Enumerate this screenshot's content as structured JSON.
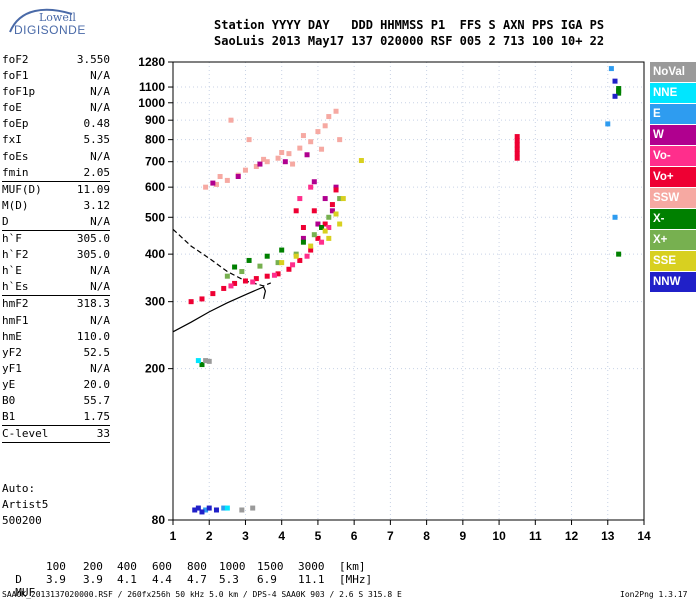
{
  "logo": {
    "line1": "Lowell",
    "line2": "DIGISONDE"
  },
  "header": {
    "line1": "Station YYYY DAY   DDD HHMMSS P1  FFS S AXN PPS IGA PS",
    "line2": "SaoLuis 2013 May17 137 020000 RSF 005 2 713 100 10+ 22"
  },
  "param_groups": [
    [
      {
        "k": "foF2",
        "v": "3.550"
      },
      {
        "k": "foF1",
        "v": "N/A"
      },
      {
        "k": "foF1p",
        "v": "N/A"
      },
      {
        "k": "foE",
        "v": "N/A"
      },
      {
        "k": "foEp",
        "v": "0.48"
      },
      {
        "k": "fxI",
        "v": "5.35"
      },
      {
        "k": "foEs",
        "v": "N/A"
      },
      {
        "k": "fmin",
        "v": "2.05"
      }
    ],
    [
      {
        "k": "MUF(D)",
        "v": "11.09"
      },
      {
        "k": "M(D)",
        "v": "3.12"
      },
      {
        "k": "D",
        "v": "N/A"
      }
    ],
    [
      {
        "k": "h`F",
        "v": "305.0"
      },
      {
        "k": "h`F2",
        "v": "305.0"
      },
      {
        "k": "h`E",
        "v": "N/A"
      },
      {
        "k": "h`Es",
        "v": "N/A"
      }
    ],
    [
      {
        "k": "hmF2",
        "v": "318.3"
      },
      {
        "k": "hmF1",
        "v": "N/A"
      },
      {
        "k": "hmE",
        "v": "110.0"
      },
      {
        "k": "yF2",
        "v": "52.5"
      },
      {
        "k": "yF1",
        "v": "N/A"
      },
      {
        "k": "yE",
        "v": "20.0"
      },
      {
        "k": "B0",
        "v": "55.7"
      },
      {
        "k": "B1",
        "v": "1.75"
      }
    ],
    [
      {
        "k": "C-level",
        "v": "33"
      }
    ]
  ],
  "auto": [
    "Auto:",
    "Artist5",
    "500200"
  ],
  "muf_table": {
    "d_label": "D",
    "distances": [
      "100",
      "200",
      "400",
      "600",
      "800",
      "1000",
      "1500",
      "3000",
      "[km]"
    ],
    "muf_label": "MUF",
    "mufs": [
      "3.9",
      "3.9",
      "4.1",
      "4.4",
      "4.7",
      "5.3",
      "6.9",
      "11.1",
      "[MHz]"
    ]
  },
  "footer": "SAA0K_2013137020000.RSF / 260fx256h 50 kHz 5.0 km / DPS-4 SAA0K 903 / 2.6 S 315.8 E",
  "footer_right": "Ion2Png 1.3.17",
  "legend": [
    {
      "label": "NoVal",
      "color": "#9a9a9a"
    },
    {
      "label": "NNE",
      "color": "#00e6ff"
    },
    {
      "label": "E",
      "color": "#2e9cf0"
    },
    {
      "label": "W",
      "color": "#b0008f"
    },
    {
      "label": "Vo-",
      "color": "#ff2e8c"
    },
    {
      "label": "Vo+",
      "color": "#ee0033"
    },
    {
      "label": "SSW",
      "color": "#f6a9a2"
    },
    {
      "label": "X-",
      "color": "#008000"
    },
    {
      "label": "X+",
      "color": "#77b050"
    },
    {
      "label": "SSE",
      "color": "#d8d020"
    },
    {
      "label": "NNW",
      "color": "#2020c8"
    }
  ],
  "chart_data": {
    "type": "scatter",
    "x_ticks": [
      1,
      2,
      3,
      4,
      5,
      6,
      7,
      8,
      9,
      10,
      11,
      12,
      13,
      14
    ],
    "y_ticks": [
      80,
      200,
      300,
      400,
      500,
      600,
      700,
      800,
      900,
      1000,
      1100,
      1280
    ],
    "xlim": [
      1,
      14
    ],
    "ylim": [
      80,
      1280
    ],
    "y_scale": "log",
    "grid": true,
    "series": [
      {
        "name": "SSW",
        "color": "#f6a9a2",
        "points": [
          [
            1.9,
            600
          ],
          [
            2.2,
            610
          ],
          [
            2.5,
            625
          ],
          [
            2.8,
            645
          ],
          [
            3.0,
            665
          ],
          [
            3.3,
            680
          ],
          [
            3.6,
            700
          ],
          [
            3.9,
            715
          ],
          [
            4.2,
            735
          ],
          [
            4.5,
            760
          ],
          [
            4.8,
            790
          ],
          [
            5.0,
            840
          ],
          [
            5.2,
            870
          ],
          [
            5.3,
            920
          ],
          [
            2.6,
            900
          ],
          [
            3.1,
            800
          ],
          [
            4.0,
            740
          ],
          [
            4.6,
            820
          ],
          [
            5.5,
            950
          ],
          [
            5.1,
            755
          ],
          [
            4.3,
            690
          ],
          [
            3.5,
            710
          ],
          [
            2.3,
            640
          ],
          [
            5.6,
            800
          ]
        ]
      },
      {
        "name": "W",
        "color": "#b0008f",
        "points": [
          [
            2.1,
            615
          ],
          [
            2.8,
            640
          ],
          [
            3.4,
            690
          ],
          [
            4.1,
            700
          ],
          [
            4.7,
            730
          ],
          [
            4.9,
            620
          ],
          [
            5.2,
            560
          ],
          [
            5.0,
            480
          ],
          [
            5.4,
            520
          ],
          [
            4.6,
            440
          ],
          [
            5.5,
            600
          ]
        ]
      },
      {
        "name": "Vo+",
        "color": "#ee0033",
        "points": [
          [
            1.5,
            300
          ],
          [
            1.8,
            305
          ],
          [
            2.1,
            315
          ],
          [
            2.4,
            325
          ],
          [
            2.7,
            335
          ],
          [
            3.0,
            340
          ],
          [
            3.3,
            345
          ],
          [
            3.6,
            350
          ],
          [
            3.9,
            355
          ],
          [
            4.2,
            365
          ],
          [
            4.5,
            385
          ],
          [
            4.8,
            410
          ],
          [
            5.0,
            440
          ],
          [
            5.2,
            480
          ],
          [
            5.4,
            540
          ],
          [
            5.5,
            590
          ],
          [
            4.4,
            520
          ],
          [
            4.6,
            470
          ],
          [
            4.9,
            520
          ],
          [
            10.5,
            715
          ],
          [
            10.5,
            735
          ],
          [
            10.5,
            755
          ],
          [
            10.5,
            775
          ],
          [
            10.5,
            795
          ],
          [
            10.5,
            815
          ]
        ]
      },
      {
        "name": "Vo-",
        "color": "#ff2e8c",
        "points": [
          [
            2.6,
            330
          ],
          [
            3.2,
            338
          ],
          [
            3.8,
            352
          ],
          [
            4.3,
            375
          ],
          [
            4.7,
            395
          ],
          [
            5.1,
            430
          ],
          [
            5.3,
            470
          ],
          [
            4.5,
            560
          ],
          [
            4.8,
            600
          ]
        ]
      },
      {
        "name": "X-",
        "color": "#008000",
        "points": [
          [
            2.7,
            370
          ],
          [
            3.1,
            385
          ],
          [
            3.6,
            395
          ],
          [
            4.0,
            410
          ],
          [
            4.6,
            430
          ],
          [
            5.1,
            470
          ],
          [
            1.8,
            205
          ],
          [
            13.3,
            1060
          ],
          [
            13.3,
            1075
          ],
          [
            13.3,
            1090
          ],
          [
            13.3,
            400
          ]
        ]
      },
      {
        "name": "X+",
        "color": "#77b050",
        "points": [
          [
            2.9,
            360
          ],
          [
            3.4,
            372
          ],
          [
            3.9,
            380
          ],
          [
            4.4,
            400
          ],
          [
            4.9,
            450
          ],
          [
            5.3,
            500
          ],
          [
            5.6,
            560
          ],
          [
            2.5,
            350
          ]
        ]
      },
      {
        "name": "SSE",
        "color": "#d8d020",
        "points": [
          [
            4.0,
            380
          ],
          [
            4.4,
            395
          ],
          [
            4.8,
            420
          ],
          [
            5.2,
            460
          ],
          [
            5.5,
            510
          ],
          [
            5.7,
            560
          ],
          [
            5.6,
            480
          ],
          [
            5.3,
            440
          ],
          [
            6.2,
            705
          ]
        ]
      },
      {
        "name": "E",
        "color": "#2e9cf0",
        "points": [
          [
            13.1,
            1230
          ],
          [
            13.0,
            880
          ],
          [
            13.2,
            500
          ],
          [
            1.9,
            85
          ],
          [
            2.4,
            86
          ]
        ]
      },
      {
        "name": "NNW",
        "color": "#2020c8",
        "points": [
          [
            1.6,
            85
          ],
          [
            1.8,
            84
          ],
          [
            2.0,
            86
          ],
          [
            2.2,
            85
          ],
          [
            1.7,
            86
          ],
          [
            13.2,
            1140
          ],
          [
            13.2,
            1040
          ]
        ]
      },
      {
        "name": "NNE",
        "color": "#00e6ff",
        "points": [
          [
            1.7,
            210
          ],
          [
            2.5,
            86
          ]
        ]
      },
      {
        "name": "NoVal",
        "color": "#9a9a9a",
        "points": [
          [
            2.9,
            85
          ],
          [
            3.2,
            86
          ],
          [
            1.9,
            210
          ],
          [
            2.0,
            209
          ]
        ]
      }
    ],
    "curves": [
      {
        "name": "",
        "style": "solid",
        "points": [
          [
            1,
            250
          ],
          [
            1.5,
            265
          ],
          [
            2,
            282
          ],
          [
            2.5,
            298
          ],
          [
            3,
            313
          ],
          [
            3.3,
            322
          ],
          [
            3.5,
            328
          ],
          [
            3.55,
            320
          ],
          [
            3.5,
            305
          ]
        ]
      },
      {
        "name": "",
        "style": "dashed",
        "points": [
          [
            1,
            465
          ],
          [
            1.5,
            420
          ],
          [
            2,
            390
          ],
          [
            2.5,
            360
          ],
          [
            3,
            340
          ],
          [
            3.5,
            330
          ],
          [
            3.7,
            336
          ]
        ]
      }
    ]
  }
}
